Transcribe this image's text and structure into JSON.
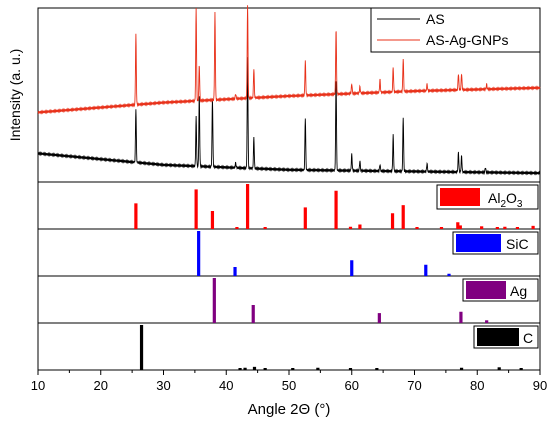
{
  "chart_data": {
    "type": "line",
    "xlabel": "Angle 2Θ (°)",
    "ylabel": "Intensity (a. u.)",
    "xlim": [
      10,
      90
    ],
    "x_ticks": [
      "10",
      "20",
      "30",
      "40",
      "50",
      "60",
      "70",
      "80",
      "90"
    ],
    "legend": {
      "placement": "top-right"
    },
    "series": [
      {
        "name": "AS",
        "color": "#000000",
        "peaks": [
          {
            "x": 25.6,
            "h": 0.33
          },
          {
            "x": 35.2,
            "h": 0.3
          },
          {
            "x": 35.7,
            "h": 0.44
          },
          {
            "x": 37.8,
            "h": 0.42
          },
          {
            "x": 41.5,
            "h": 0.03
          },
          {
            "x": 43.4,
            "h": 0.68
          },
          {
            "x": 44.4,
            "h": 0.19
          },
          {
            "x": 52.6,
            "h": 0.32
          },
          {
            "x": 57.5,
            "h": 0.57
          },
          {
            "x": 60.0,
            "h": 0.1
          },
          {
            "x": 61.3,
            "h": 0.06
          },
          {
            "x": 64.5,
            "h": 0.04
          },
          {
            "x": 66.6,
            "h": 0.22
          },
          {
            "x": 68.2,
            "h": 0.33
          },
          {
            "x": 72.0,
            "h": 0.05
          },
          {
            "x": 77.0,
            "h": 0.12
          },
          {
            "x": 77.5,
            "h": 0.1
          },
          {
            "x": 81.3,
            "h": 0.03
          }
        ],
        "baseline": [
          [
            10,
            0.15
          ],
          [
            30,
            0.08
          ],
          [
            50,
            0.05
          ],
          [
            70,
            0.04
          ],
          [
            90,
            0.03
          ]
        ]
      },
      {
        "name": "AS-Ag-GNPs",
        "color": "#e8311a",
        "peaks": [
          {
            "x": 25.6,
            "h": 0.43
          },
          {
            "x": 35.2,
            "h": 0.57
          },
          {
            "x": 35.7,
            "h": 0.22
          },
          {
            "x": 38.2,
            "h": 0.53
          },
          {
            "x": 41.5,
            "h": 0.03
          },
          {
            "x": 43.4,
            "h": 0.57
          },
          {
            "x": 44.4,
            "h": 0.18
          },
          {
            "x": 52.6,
            "h": 0.21
          },
          {
            "x": 57.5,
            "h": 0.4
          },
          {
            "x": 60.0,
            "h": 0.06
          },
          {
            "x": 61.3,
            "h": 0.04
          },
          {
            "x": 64.5,
            "h": 0.08
          },
          {
            "x": 66.6,
            "h": 0.15
          },
          {
            "x": 68.2,
            "h": 0.2
          },
          {
            "x": 72.0,
            "h": 0.04
          },
          {
            "x": 77.0,
            "h": 0.1
          },
          {
            "x": 77.5,
            "h": 0.1
          },
          {
            "x": 81.5,
            "h": 0.03
          }
        ],
        "baseline": [
          [
            10,
            0.4
          ],
          [
            30,
            0.46
          ],
          [
            50,
            0.5
          ],
          [
            70,
            0.53
          ],
          [
            90,
            0.55
          ]
        ]
      }
    ],
    "references": [
      {
        "name": "Al2O3",
        "label_main": "Al",
        "label_sub1": "2",
        "label_mid": "O",
        "label_sub2": "3",
        "color": "#ff0000",
        "sticks": [
          {
            "x": 25.6,
            "h": 0.57
          },
          {
            "x": 35.2,
            "h": 0.88
          },
          {
            "x": 37.8,
            "h": 0.4
          },
          {
            "x": 41.7,
            "h": 0.03
          },
          {
            "x": 43.4,
            "h": 1.0
          },
          {
            "x": 46.2,
            "h": 0.03
          },
          {
            "x": 52.6,
            "h": 0.48
          },
          {
            "x": 57.5,
            "h": 0.85
          },
          {
            "x": 59.8,
            "h": 0.05
          },
          {
            "x": 61.3,
            "h": 0.1
          },
          {
            "x": 66.5,
            "h": 0.35
          },
          {
            "x": 68.2,
            "h": 0.53
          },
          {
            "x": 70.4,
            "h": 0.03
          },
          {
            "x": 74.3,
            "h": 0.03
          },
          {
            "x": 76.9,
            "h": 0.15
          },
          {
            "x": 77.3,
            "h": 0.08
          },
          {
            "x": 80.7,
            "h": 0.06
          },
          {
            "x": 83.2,
            "h": 0.04
          },
          {
            "x": 84.4,
            "h": 0.05
          },
          {
            "x": 86.4,
            "h": 0.04
          },
          {
            "x": 88.9,
            "h": 0.07
          }
        ]
      },
      {
        "name": "SiC",
        "label": "SiC",
        "color": "#0000ff",
        "sticks": [
          {
            "x": 35.6,
            "h": 1.0
          },
          {
            "x": 41.4,
            "h": 0.2
          },
          {
            "x": 60.0,
            "h": 0.35
          },
          {
            "x": 71.8,
            "h": 0.25
          },
          {
            "x": 75.5,
            "h": 0.05
          }
        ]
      },
      {
        "name": "Ag",
        "label": "Ag",
        "color": "#800080",
        "sticks": [
          {
            "x": 38.1,
            "h": 1.0
          },
          {
            "x": 44.3,
            "h": 0.4
          },
          {
            "x": 64.4,
            "h": 0.22
          },
          {
            "x": 77.4,
            "h": 0.25
          },
          {
            "x": 81.5,
            "h": 0.06
          }
        ]
      },
      {
        "name": "C",
        "label": "C",
        "color": "#000000",
        "sticks": [
          {
            "x": 26.5,
            "h": 1.0
          },
          {
            "x": 42.2,
            "h": 0.04
          },
          {
            "x": 43.0,
            "h": 0.05
          },
          {
            "x": 44.5,
            "h": 0.07
          },
          {
            "x": 46.2,
            "h": 0.03
          },
          {
            "x": 50.6,
            "h": 0.03
          },
          {
            "x": 54.6,
            "h": 0.05
          },
          {
            "x": 59.8,
            "h": 0.03
          },
          {
            "x": 64.0,
            "h": 0.03
          },
          {
            "x": 77.5,
            "h": 0.05
          },
          {
            "x": 83.5,
            "h": 0.06
          },
          {
            "x": 87.0,
            "h": 0.03
          }
        ]
      }
    ]
  }
}
